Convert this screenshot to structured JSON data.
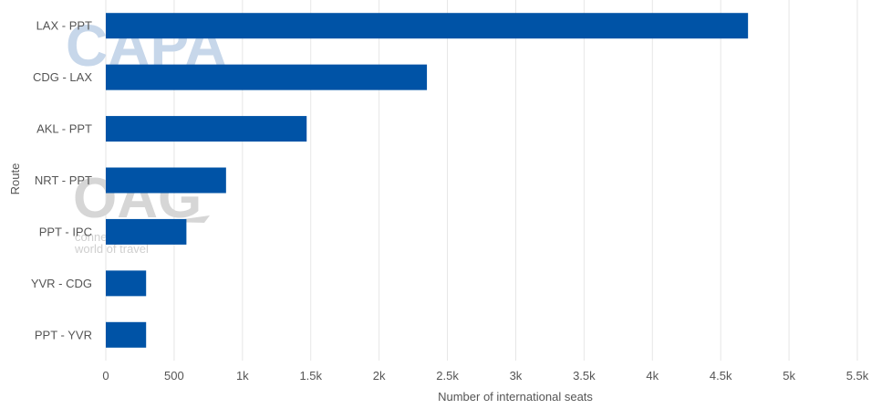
{
  "chart_data": {
    "type": "bar",
    "orientation": "horizontal",
    "title": "",
    "xlabel": "Number of international seats",
    "ylabel": "Route",
    "categories": [
      "LAX - PPT",
      "CDG - LAX",
      "AKL - PPT",
      "NRT - PPT",
      "PPT - IPC",
      "YVR - CDG",
      "PPT - YVR"
    ],
    "values": [
      4700,
      2350,
      1470,
      880,
      590,
      295,
      295
    ],
    "xlim": [
      0,
      5500
    ],
    "xticks": [
      0,
      500,
      1000,
      1500,
      2000,
      2500,
      3000,
      3500,
      4000,
      4500,
      5000,
      5500
    ],
    "xtick_labels": [
      "0",
      "500",
      "1k",
      "1.5k",
      "2k",
      "2.5k",
      "3k",
      "3.5k",
      "4k",
      "4.5k",
      "5k",
      "5.5k"
    ],
    "bar_color": "#0053a6",
    "grid": true,
    "legend": "none"
  },
  "watermark": {
    "capa_text": "CAPA",
    "oag_text": "OAG",
    "oag_subline1": "conne",
    "oag_subline2": "world of travel"
  }
}
